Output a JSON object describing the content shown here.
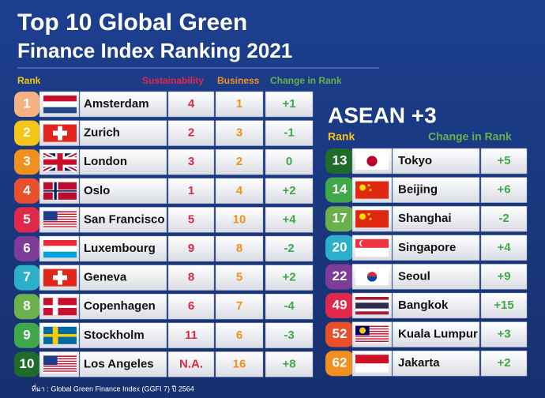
{
  "header": {
    "title_line1": "Top 10 Global Green",
    "title_line2": "Finance Index  Ranking 2021"
  },
  "global": {
    "columns": {
      "rank": "Rank",
      "sustainability": "Sustainability",
      "business": "Business",
      "change": "Change in Rank"
    },
    "rows": [
      {
        "rank": 1,
        "city": "Amsterdam",
        "sustainability": 4,
        "business": 1,
        "change": "+1"
      },
      {
        "rank": 2,
        "city": "Zurich",
        "sustainability": 2,
        "business": 3,
        "change": "-1"
      },
      {
        "rank": 3,
        "city": "London",
        "sustainability": 3,
        "business": 2,
        "change": "0"
      },
      {
        "rank": 4,
        "city": "Oslo",
        "sustainability": 1,
        "business": 4,
        "change": "+2"
      },
      {
        "rank": 5,
        "city": "San Francisco",
        "sustainability": 5,
        "business": 10,
        "change": "+4"
      },
      {
        "rank": 6,
        "city": "Luxembourg",
        "sustainability": 9,
        "business": 8,
        "change": "-2"
      },
      {
        "rank": 7,
        "city": "Geneva",
        "sustainability": 8,
        "business": 5,
        "change": "+2"
      },
      {
        "rank": 8,
        "city": "Copenhagen",
        "sustainability": 6,
        "business": 7,
        "change": "-4"
      },
      {
        "rank": 9,
        "city": "Stockholm",
        "sustainability": 11,
        "business": 6,
        "change": "-3"
      },
      {
        "rank": 10,
        "city": "Los Angeles",
        "sustainability": "N.A.",
        "business": 16,
        "change": "+8"
      }
    ]
  },
  "asean": {
    "title": "ASEAN +3",
    "columns": {
      "rank": "Rank",
      "change": "Change in Rank"
    },
    "rows": [
      {
        "rank": 13,
        "city": "Tokyo",
        "change": "+5"
      },
      {
        "rank": 14,
        "city": "Beijing",
        "change": "+6"
      },
      {
        "rank": 17,
        "city": "Shanghai",
        "change": "-2"
      },
      {
        "rank": 20,
        "city": "Singapore",
        "change": "+4"
      },
      {
        "rank": 22,
        "city": "Seoul",
        "change": "+9"
      },
      {
        "rank": 49,
        "city": "Bangkok",
        "change": "+15"
      },
      {
        "rank": 52,
        "city": "Kuala Lumpur",
        "change": "+3"
      },
      {
        "rank": 62,
        "city": "Jakarta",
        "change": "+2"
      }
    ]
  },
  "footer": {
    "source": "ที่มา : Global Green Finance Index (GGFI 7) ปี 2564"
  }
}
